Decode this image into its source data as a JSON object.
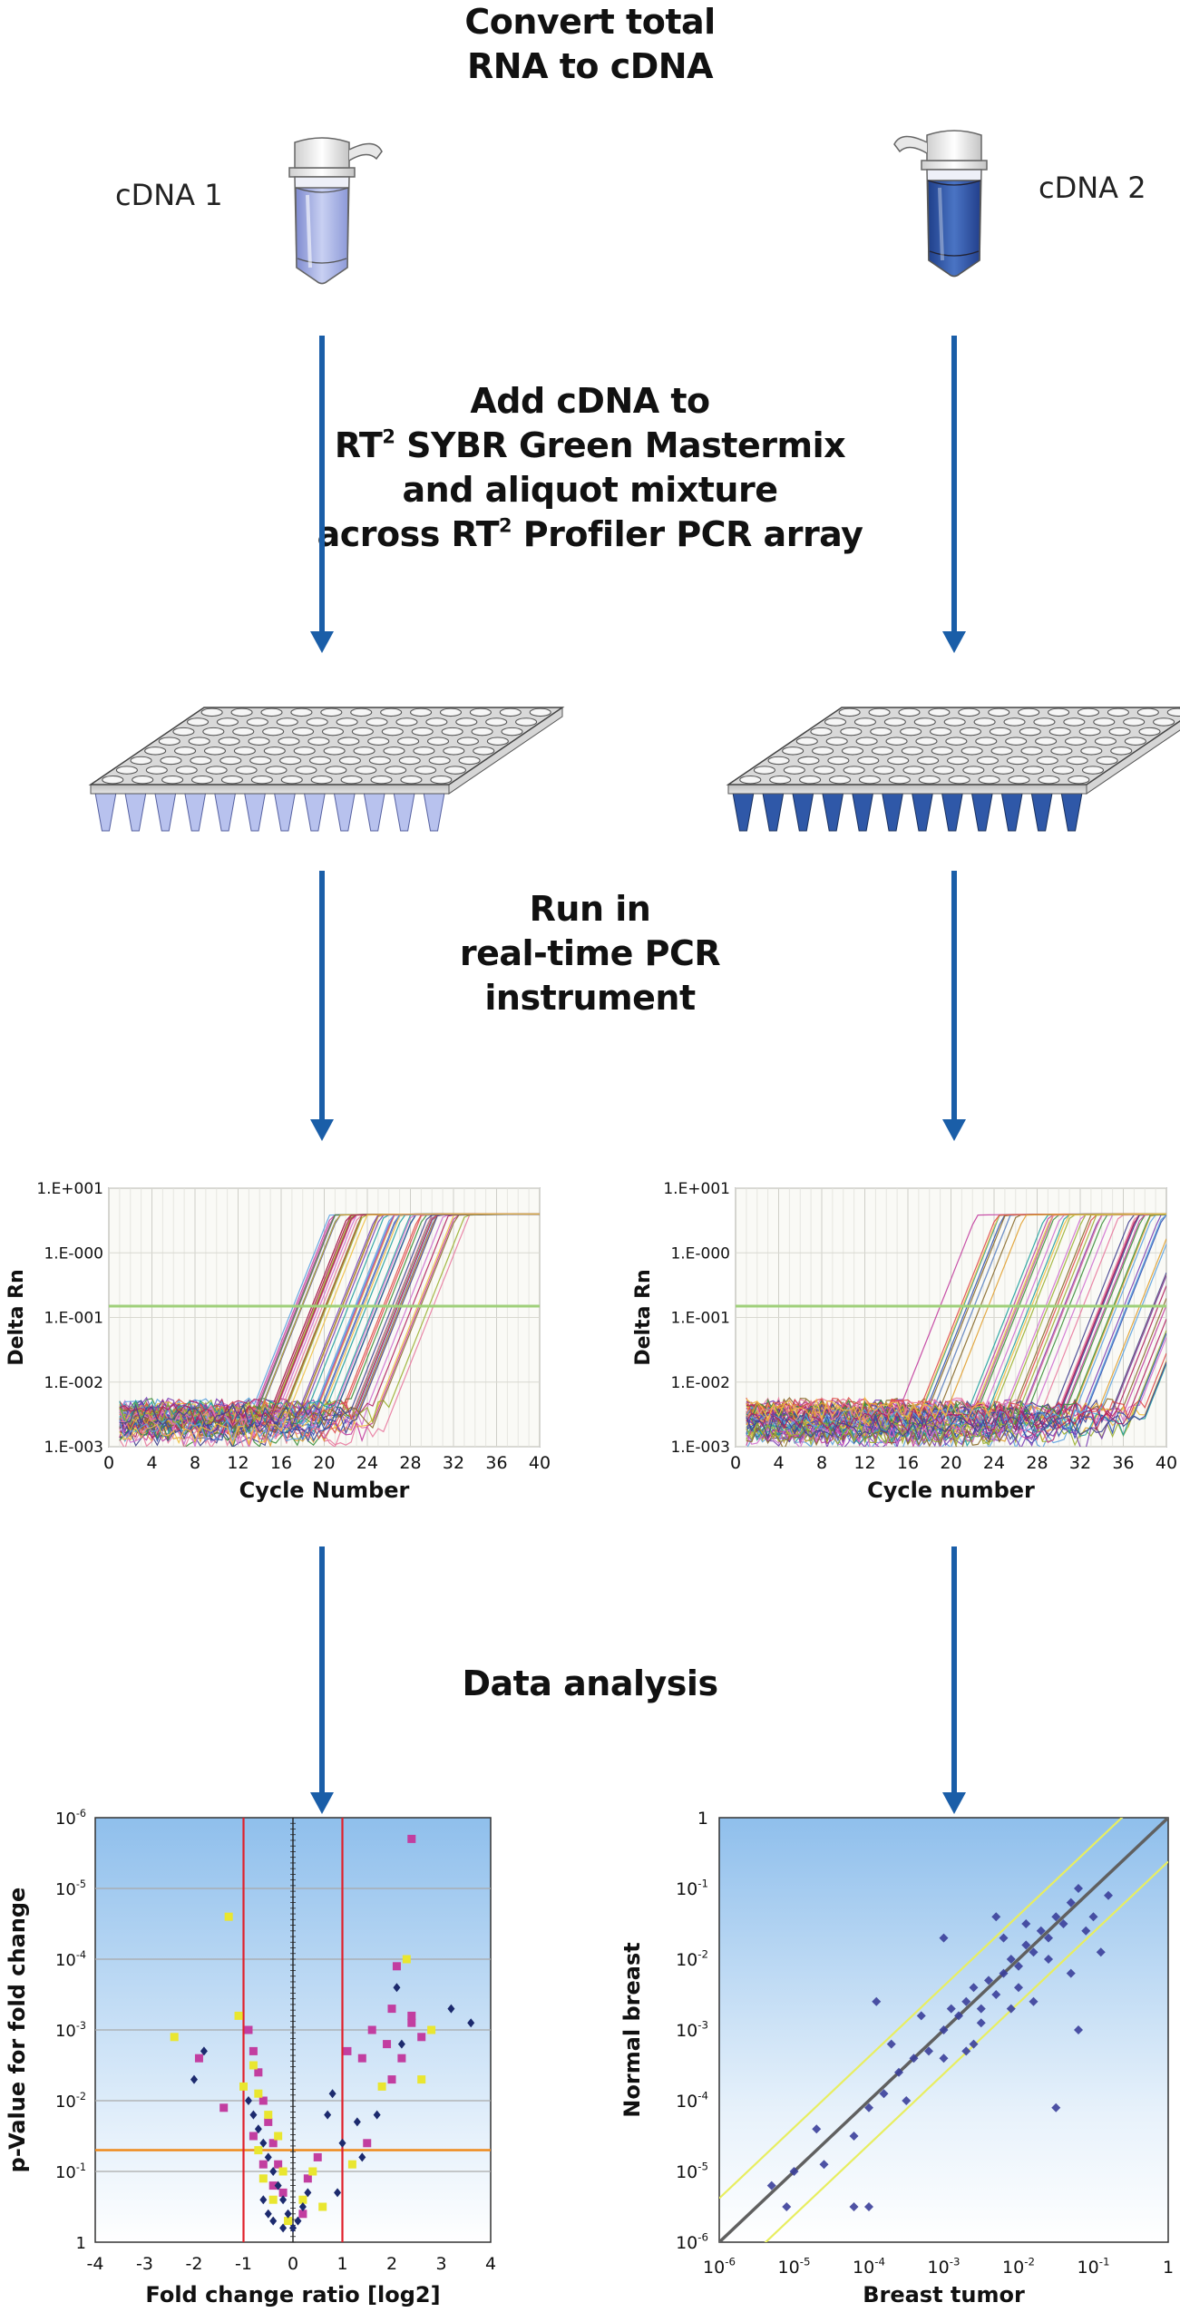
{
  "headings": {
    "step1": [
      "Convert total",
      "RNA to cDNA"
    ],
    "step2": {
      "line1": "Add cDNA to",
      "line2_pre": "RT",
      "line2_sup": "2",
      "line2_post": " SYBR Green Mastermix",
      "line3": "and aliquot mixture",
      "line4_pre": "across RT",
      "line4_sup": "2",
      "line4_post": " Profiler PCR array"
    },
    "step3": [
      "Run in",
      "real-time PCR",
      "instrument"
    ],
    "step4": "Data analysis"
  },
  "samples": {
    "left": "cDNA 1",
    "right": "cDNA 2"
  },
  "colors": {
    "arrow": "#1a5ea8",
    "light_tube": "#aab4e6",
    "dark_tube": "#2a4fa0",
    "threshold": "#9fd07a",
    "volcano_bg_top": "#9dc6ee",
    "scatter_point": "#3b3f9a",
    "scatter_line": "#606060",
    "scatter_band": "#e8ee60"
  },
  "amp_left": {
    "ylabel": "Delta Rn",
    "xlabel": "Cycle Number",
    "yticks": [
      "1.E+001",
      "1.E-000",
      "1.E-001",
      "1.E-002",
      "1.E-003"
    ],
    "xticks": [
      "0",
      "4",
      "8",
      "12",
      "16",
      "20",
      "24",
      "28",
      "32",
      "36",
      "40"
    ]
  },
  "amp_right": {
    "ylabel": "Delta Rn",
    "xlabel": "Cycle number",
    "yticks": [
      "1.E+001",
      "1.E-000",
      "1.E-001",
      "1.E-002",
      "1.E-003"
    ],
    "xticks": [
      "0",
      "4",
      "8",
      "12",
      "16",
      "20",
      "24",
      "28",
      "32",
      "36",
      "40"
    ]
  },
  "volcano": {
    "ylabel": "p-Value for fold change",
    "xlabel": "Fold change ratio [log2]",
    "yticks": [
      {
        "b": "10",
        "e": "-6"
      },
      {
        "b": "10",
        "e": "-5"
      },
      {
        "b": "10",
        "e": "-4"
      },
      {
        "b": "10",
        "e": "-3"
      },
      {
        "b": "10",
        "e": "-2"
      },
      {
        "b": "10",
        "e": "-1"
      },
      {
        "b": "1",
        "e": ""
      }
    ],
    "xticks": [
      "-4",
      "-3",
      "-2",
      "-1",
      "0",
      "1",
      "2",
      "3",
      "4"
    ]
  },
  "scatter": {
    "ylabel": "Normal breast",
    "xlabel": "Breast tumor",
    "yticks": [
      {
        "b": "1",
        "e": ""
      },
      {
        "b": "10",
        "e": "-1"
      },
      {
        "b": "10",
        "e": "-2"
      },
      {
        "b": "10",
        "e": "-3"
      },
      {
        "b": "10",
        "e": "-4"
      },
      {
        "b": "10",
        "e": "-5"
      },
      {
        "b": "10",
        "e": "-6"
      }
    ],
    "xticks": [
      {
        "b": "10",
        "e": "-6"
      },
      {
        "b": "10",
        "e": "-5"
      },
      {
        "b": "10",
        "e": "-4"
      },
      {
        "b": "10",
        "e": "-3"
      },
      {
        "b": "10",
        "e": "-2"
      },
      {
        "b": "10",
        "e": "-1"
      },
      {
        "b": "1",
        "e": ""
      }
    ]
  },
  "chart_data": [
    {
      "type": "line",
      "title": "",
      "xlabel": "Cycle Number",
      "ylabel": "Delta Rn",
      "xlim": [
        0,
        40
      ],
      "yscale": "log",
      "ylim": [
        0.001,
        10
      ],
      "threshold": 0.15,
      "curve_family": {
        "count": 60,
        "rise_start_cycle_range": [
          13,
          26
        ],
        "plateau": 4.0,
        "noise_floor": 0.002
      }
    },
    {
      "type": "line",
      "title": "",
      "xlabel": "Cycle number",
      "ylabel": "Delta Rn",
      "xlim": [
        0,
        40
      ],
      "yscale": "log",
      "ylim": [
        0.001,
        10
      ],
      "threshold": 0.15,
      "curve_family": {
        "count": 60,
        "rise_start_cycle_range": [
          15,
          38
        ],
        "plateau": 4.0,
        "noise_floor": 0.002
      }
    },
    {
      "type": "scatter",
      "title": "",
      "xlabel": "Fold change ratio [log2]",
      "ylabel": "p-Value for fold change",
      "xlim": [
        -4,
        4
      ],
      "ylim_log10": [
        -6,
        0
      ],
      "fold_cutoffs": [
        -1,
        1
      ],
      "pvalue_cutoff": 0.05,
      "series": [
        {
          "name": "pink",
          "color": "#c23ea0",
          "points": [
            [
              2.4,
              5.7
            ],
            [
              2.1,
              3.9
            ],
            [
              2.4,
              3.1
            ],
            [
              2.6,
              2.9
            ],
            [
              2.2,
              2.6
            ],
            [
              1.6,
              3.0
            ],
            [
              1.1,
              2.7
            ],
            [
              1.4,
              2.6
            ],
            [
              1.9,
              2.8
            ],
            [
              2.0,
              3.3
            ],
            [
              2.4,
              3.2
            ],
            [
              2.0,
              2.3
            ],
            [
              1.5,
              1.4
            ],
            [
              -1.9,
              2.6
            ],
            [
              -1.4,
              1.9
            ],
            [
              -0.9,
              3.0
            ],
            [
              -0.8,
              2.7
            ],
            [
              -0.7,
              2.4
            ],
            [
              -0.6,
              2.0
            ],
            [
              -0.5,
              1.7
            ],
            [
              -0.4,
              1.4
            ],
            [
              -0.3,
              1.1
            ],
            [
              -0.2,
              0.7
            ],
            [
              -0.6,
              1.1
            ],
            [
              -0.4,
              0.8
            ],
            [
              0.2,
              0.4
            ],
            [
              0.3,
              0.9
            ],
            [
              0.5,
              1.2
            ],
            [
              -0.8,
              1.5
            ]
          ]
        },
        {
          "name": "yellow",
          "color": "#e9e630",
          "points": [
            [
              -1.3,
              4.6
            ],
            [
              -2.4,
              2.9
            ],
            [
              2.3,
              4.0
            ],
            [
              2.8,
              3.0
            ],
            [
              2.6,
              2.3
            ],
            [
              1.8,
              2.2
            ],
            [
              -1.1,
              3.2
            ],
            [
              -0.8,
              2.5
            ],
            [
              -0.7,
              2.1
            ],
            [
              -0.5,
              1.8
            ],
            [
              -0.3,
              1.5
            ],
            [
              -0.2,
              1.0
            ],
            [
              -0.7,
              1.3
            ],
            [
              -0.6,
              0.9
            ],
            [
              -0.4,
              0.6
            ],
            [
              -0.1,
              0.3
            ],
            [
              0.2,
              0.6
            ],
            [
              0.4,
              1.0
            ],
            [
              0.6,
              0.5
            ],
            [
              1.2,
              1.1
            ],
            [
              -1.0,
              2.2
            ]
          ]
        },
        {
          "name": "navy",
          "color": "#1c2a6e",
          "points": [
            [
              3.6,
              3.1
            ],
            [
              3.2,
              3.3
            ],
            [
              2.1,
              3.6
            ],
            [
              2.2,
              2.8
            ],
            [
              1.0,
              1.4
            ],
            [
              1.3,
              1.7
            ],
            [
              1.7,
              1.8
            ],
            [
              0.8,
              2.1
            ],
            [
              0.7,
              1.8
            ],
            [
              -2.0,
              2.3
            ],
            [
              -1.8,
              2.7
            ],
            [
              -0.9,
              2.0
            ],
            [
              -0.8,
              1.8
            ],
            [
              -0.7,
              1.6
            ],
            [
              -0.6,
              1.4
            ],
            [
              -0.5,
              1.2
            ],
            [
              -0.4,
              1.0
            ],
            [
              -0.3,
              0.8
            ],
            [
              -0.2,
              0.6
            ],
            [
              -0.1,
              0.4
            ],
            [
              0.0,
              0.2
            ],
            [
              0.1,
              0.3
            ],
            [
              0.2,
              0.5
            ],
            [
              0.3,
              0.7
            ],
            [
              -0.6,
              0.6
            ],
            [
              -0.5,
              0.4
            ],
            [
              -0.4,
              0.3
            ],
            [
              -0.2,
              0.2
            ],
            [
              1.4,
              1.2
            ],
            [
              0.9,
              0.7
            ]
          ]
        }
      ]
    },
    {
      "type": "scatter",
      "title": "",
      "xlabel": "Breast tumor",
      "ylabel": "Normal breast",
      "xscale": "log",
      "yscale": "log",
      "xlim": [
        1e-06,
        1
      ],
      "ylim": [
        1e-06,
        1
      ],
      "identity_line": true,
      "fold_boundaries": 3,
      "series": [
        {
          "name": "genes",
          "color": "#3b3f9a",
          "points_log10": [
            [
              -5.3,
              -5.2
            ],
            [
              -5.0,
              -5.0
            ],
            [
              -4.6,
              -4.9
            ],
            [
              -4.7,
              -4.4
            ],
            [
              -4.2,
              -4.5
            ],
            [
              -4.0,
              -4.1
            ],
            [
              -3.8,
              -3.9
            ],
            [
              -3.6,
              -3.6
            ],
            [
              -3.4,
              -3.4
            ],
            [
              -3.2,
              -3.3
            ],
            [
              -3.0,
              -3.0
            ],
            [
              -2.8,
              -2.8
            ],
            [
              -2.7,
              -2.6
            ],
            [
              -2.6,
              -2.4
            ],
            [
              -2.5,
              -2.7
            ],
            [
              -2.4,
              -2.3
            ],
            [
              -2.3,
              -2.5
            ],
            [
              -2.2,
              -2.2
            ],
            [
              -2.1,
              -2.0
            ],
            [
              -2.0,
              -2.1
            ],
            [
              -1.9,
              -1.8
            ],
            [
              -1.8,
              -1.9
            ],
            [
              -1.7,
              -1.6
            ],
            [
              -1.6,
              -1.7
            ],
            [
              -1.5,
              -1.4
            ],
            [
              -1.4,
              -1.5
            ],
            [
              -1.3,
              -1.2
            ],
            [
              -1.2,
              -1.0
            ],
            [
              -3.9,
              -2.6
            ],
            [
              -3.0,
              -1.7
            ],
            [
              -2.3,
              -1.4
            ],
            [
              -1.9,
              -1.5
            ],
            [
              -2.6,
              -3.2
            ],
            [
              -1.8,
              -2.6
            ],
            [
              -1.3,
              -2.2
            ],
            [
              -1.2,
              -3.0
            ],
            [
              -1.5,
              -4.1
            ],
            [
              -3.5,
              -4.0
            ],
            [
              -4.2,
              -5.5
            ],
            [
              -4.0,
              -5.5
            ],
            [
              -5.1,
              -5.5
            ],
            [
              -3.0,
              -3.4
            ],
            [
              -2.9,
              -2.7
            ],
            [
              -2.5,
              -2.9
            ],
            [
              -2.1,
              -2.7
            ],
            [
              -1.0,
              -1.4
            ],
            [
              -0.8,
              -1.1
            ],
            [
              -0.9,
              -1.9
            ],
            [
              -2.2,
              -1.7
            ],
            [
              -3.3,
              -2.8
            ],
            [
              -2.7,
              -3.3
            ],
            [
              -1.6,
              -2.0
            ],
            [
              -1.1,
              -1.6
            ],
            [
              -3.7,
              -3.2
            ],
            [
              -2.0,
              -2.4
            ]
          ]
        }
      ]
    }
  ]
}
